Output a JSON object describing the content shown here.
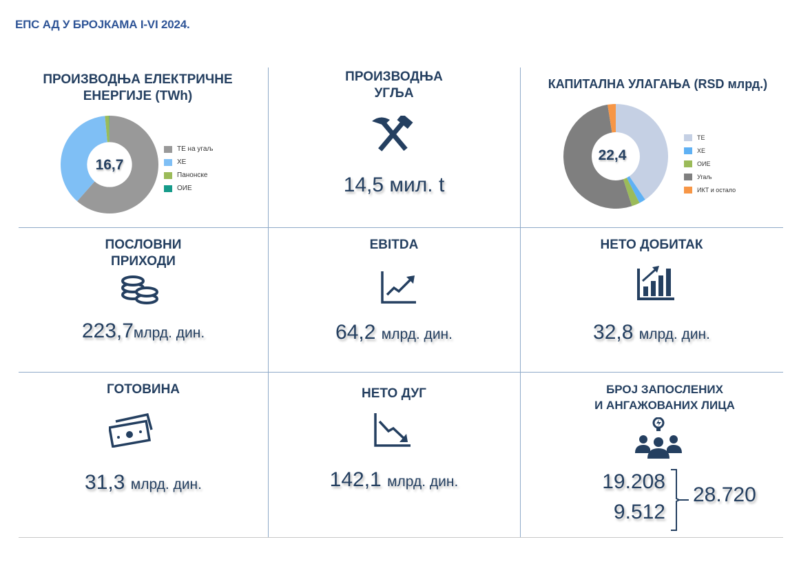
{
  "title": "ЕПС АД У БРОЈКАМА I-VI 2024.",
  "cells": {
    "electricity": {
      "heading": "ПРОИЗВОДЊА ЕЛЕКТРИЧНЕ ЕНЕРГИЈЕ (TWh)",
      "total": "16,7"
    },
    "coal": {
      "heading_line1": "ПРОИЗВОДЊА",
      "heading_line2": "УГЉА",
      "value": "14,5 мил. t",
      "icon": "hammer-pick-icon"
    },
    "capex": {
      "heading": "КАПИТАЛНА УЛАГАЊА (RSD млрд.)",
      "total": "22,4"
    },
    "revenue": {
      "heading_line1": "ПОСЛОВНИ",
      "heading_line2": "ПРИХОДИ",
      "value": "223,7",
      "unit": "млрд. дин.",
      "icon": "coins-icon"
    },
    "ebitda": {
      "heading": "EBITDA",
      "value": "64,2",
      "unit": "млрд. дин.",
      "icon": "trend-up-icon"
    },
    "net_profit": {
      "heading": "НЕТО ДОБИТАК",
      "value": "32,8",
      "unit": "млрд. дин.",
      "icon": "bar-chart-up-icon"
    },
    "cash": {
      "heading": "ГОТОВИНА",
      "value": "31,3",
      "unit": "млрд. дин.",
      "icon": "banknotes-icon"
    },
    "net_debt": {
      "heading": "НЕТО ДУГ",
      "value": "142,1",
      "unit": "млрд. дин.",
      "icon": "trend-down-icon"
    },
    "employees": {
      "heading_line1": "БРОЈ ЗАПОСЛЕНИХ",
      "heading_line2": "И АНГАЖОВАНИХ ЛИЦА",
      "employed": "19.208",
      "engaged": "9.512",
      "total": "28.720",
      "icon": "people-idea-icon"
    }
  },
  "chart_data": [
    {
      "type": "pie",
      "title": "ПРОИЗВОДЊА ЕЛЕКТРИЧНЕ ЕНЕРГИЈЕ (TWh)",
      "center_label": "16,7",
      "categories": [
        "ТЕ на угаљ",
        "ХЕ",
        "Панонске",
        "ОИЕ"
      ],
      "values": [
        61.5,
        37.0,
        1.4,
        0.1
      ],
      "colors": [
        "#999999",
        "#7fbff5",
        "#9bbb59",
        "#169b8a"
      ],
      "legend": "right"
    },
    {
      "type": "pie",
      "title": "КАПИТАЛНА УЛАГАЊА (RSD млрд.)",
      "center_label": "22,4",
      "categories": [
        "ТЕ",
        "ХЕ",
        "ОИЕ",
        "Угаљ",
        "ИКТ и остало"
      ],
      "values": [
        40.5,
        2.0,
        2.5,
        52.5,
        2.5
      ],
      "colors": [
        "#c5d0e4",
        "#5fb1f4",
        "#9bbb59",
        "#7f7f7f",
        "#f79646"
      ],
      "legend": "right"
    }
  ]
}
